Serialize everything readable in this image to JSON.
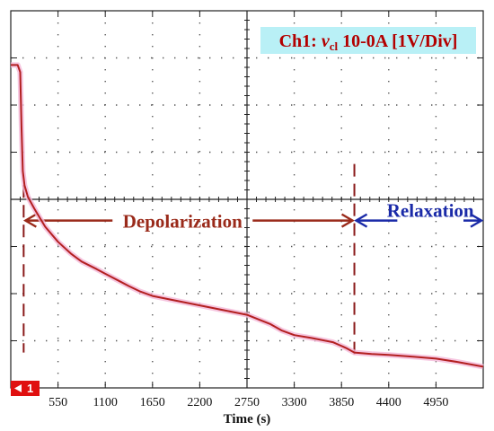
{
  "chart_data": {
    "type": "line",
    "channel_label": {
      "prefix": "Ch1: ",
      "variable": "v",
      "subscript": "cl",
      "suffix": " 10-0A [1V/Div]"
    },
    "xlabel": "Time (s)",
    "x_ticks": [
      550,
      1100,
      1650,
      2200,
      2750,
      3300,
      3850,
      4400,
      4950
    ],
    "xlim": [
      0,
      5500
    ],
    "ylim": [
      0,
      8
    ],
    "y_unit": "V (1V/Div)",
    "grid": true,
    "channel_marker": "1",
    "annotations": {
      "depolarization": "Depolarization",
      "relaxation": "Relaxation",
      "depolarization_start_time": 150,
      "relaxation_start_time": 4000
    },
    "series": [
      {
        "color": "#b32020",
        "points": [
          [
            0,
            6.85
          ],
          [
            80,
            6.85
          ],
          [
            110,
            6.7
          ],
          [
            125,
            5.5
          ],
          [
            140,
            4.6
          ],
          [
            160,
            4.3
          ],
          [
            200,
            4.05
          ],
          [
            275,
            3.8
          ],
          [
            400,
            3.42
          ],
          [
            550,
            3.1
          ],
          [
            700,
            2.85
          ],
          [
            825,
            2.68
          ],
          [
            1000,
            2.52
          ],
          [
            1100,
            2.42
          ],
          [
            1250,
            2.28
          ],
          [
            1375,
            2.16
          ],
          [
            1500,
            2.05
          ],
          [
            1650,
            1.95
          ],
          [
            1925,
            1.85
          ],
          [
            2200,
            1.75
          ],
          [
            2475,
            1.65
          ],
          [
            2750,
            1.55
          ],
          [
            2890,
            1.45
          ],
          [
            3025,
            1.35
          ],
          [
            3150,
            1.22
          ],
          [
            3300,
            1.12
          ],
          [
            3500,
            1.06
          ],
          [
            3750,
            0.97
          ],
          [
            3900,
            0.85
          ],
          [
            4000,
            0.75
          ],
          [
            4200,
            0.72
          ],
          [
            4400,
            0.7
          ],
          [
            4700,
            0.66
          ],
          [
            4950,
            0.62
          ],
          [
            5200,
            0.55
          ],
          [
            5500,
            0.45
          ]
        ]
      }
    ]
  },
  "colors": {
    "trace": "#b32020",
    "trace_glow": "#f4b8d8",
    "label_box": "#b9f0f6",
    "label_text": "#b30000",
    "depolarization": "#9a2a1a",
    "relaxation": "#1a2aa8",
    "marker_bg": "#e01010"
  }
}
